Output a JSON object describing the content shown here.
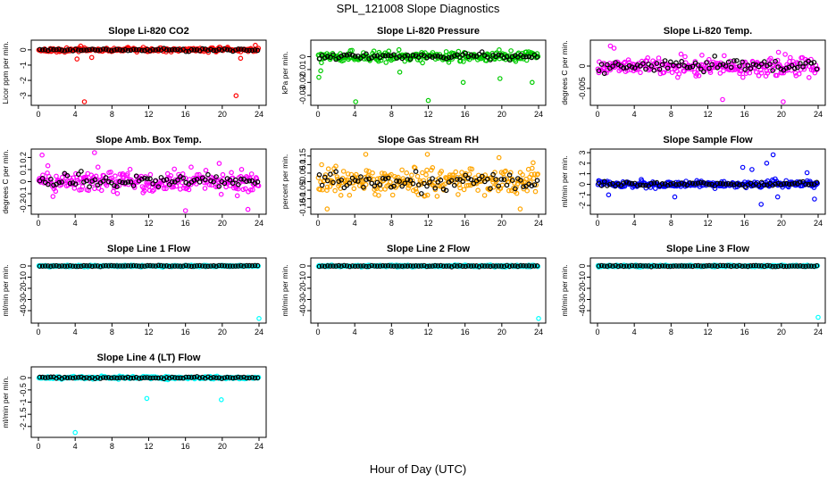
{
  "figure": {
    "title": "SPL_121008  Slope Diagnostics",
    "xlabel": "Hour of Day (UTC)",
    "overlay_color": "#000000"
  },
  "chart_data": [
    {
      "type": "scatter",
      "title": "Slope Li-820 CO2",
      "ylabel": "Licor ppm per min.",
      "xlim": [
        0,
        24
      ],
      "ylim": [
        -3.4,
        0.4
      ],
      "xticks": [
        0,
        4,
        8,
        12,
        16,
        20,
        24
      ],
      "yticks": [
        0,
        -1,
        -2,
        -3
      ],
      "color": "#ff0000",
      "series_spread": 0.14,
      "outliers": [
        [
          4.2,
          -0.6
        ],
        [
          4.6,
          0.25
        ],
        [
          5.0,
          -3.4
        ],
        [
          5.8,
          -0.5
        ],
        [
          21.5,
          -3.0
        ],
        [
          22.0,
          -0.55
        ],
        [
          23.6,
          0.3
        ]
      ]
    },
    {
      "type": "scatter",
      "title": "Slope Li-820 Pressure",
      "ylabel": "kPa per min.",
      "xlim": [
        0,
        24
      ],
      "ylim": [
        -0.035,
        0.01
      ],
      "xticks": [
        0,
        4,
        8,
        12,
        16,
        20,
        24
      ],
      "yticks": [
        0.0,
        -0.01,
        -0.02,
        -0.03
      ],
      "color": "#00cc00",
      "series_spread": 0.004,
      "outliers": [
        [
          0.1,
          -0.016
        ],
        [
          0.3,
          -0.011
        ],
        [
          4.1,
          -0.035
        ],
        [
          8.9,
          -0.012
        ],
        [
          12.0,
          -0.034
        ],
        [
          15.8,
          -0.02
        ],
        [
          19.8,
          -0.017
        ],
        [
          23.3,
          -0.02
        ]
      ]
    },
    {
      "type": "scatter",
      "title": "Slope Li-820 Temp.",
      "ylabel": "degrees C per min.",
      "xlim": [
        0,
        24
      ],
      "ylim": [
        -0.008,
        0.005
      ],
      "xticks": [
        0,
        4,
        8,
        12,
        16,
        20,
        24
      ],
      "yticks": [
        0.0,
        -0.005
      ],
      "color": "#ff00ff",
      "series_spread": 0.0022,
      "outliers": [
        [
          1.4,
          0.0045
        ],
        [
          1.8,
          0.004
        ],
        [
          13.6,
          -0.0075
        ],
        [
          20.2,
          -0.008
        ]
      ]
    },
    {
      "type": "scatter",
      "title": "Slope Amb. Box Temp.",
      "ylabel": "degrees C per min.",
      "xlim": [
        0,
        24
      ],
      "ylim": [
        -0.24,
        0.24
      ],
      "xticks": [
        0,
        4,
        8,
        12,
        16,
        20,
        24
      ],
      "yticks": [
        0.2,
        0.1,
        0.0,
        -0.1,
        -0.2
      ],
      "color": "#ff00ff",
      "series_spread": 0.1,
      "outliers": [
        [
          0.4,
          0.22
        ],
        [
          6.1,
          0.24
        ],
        [
          16.0,
          -0.24
        ],
        [
          22.8,
          -0.23
        ]
      ]
    },
    {
      "type": "scatter",
      "title": "Slope Gas Stream RH",
      "ylabel": "percent per min.",
      "xlim": [
        0,
        24
      ],
      "ylim": [
        -0.17,
        0.17
      ],
      "xticks": [
        0,
        4,
        8,
        12,
        16,
        20,
        24
      ],
      "yticks": [
        0.15,
        0.1,
        0.05,
        0.0,
        -0.05,
        -0.1,
        -0.15
      ],
      "color": "#ffa500",
      "series_spread": 0.08,
      "outliers": [
        [
          1.0,
          -0.16
        ],
        [
          5.2,
          0.16
        ],
        [
          11.9,
          0.16
        ],
        [
          22.0,
          -0.16
        ]
      ]
    },
    {
      "type": "scatter",
      "title": "Slope Sample Flow",
      "ylabel": "ml/min per min.",
      "xlim": [
        0,
        24
      ],
      "ylim": [
        -2.5,
        3.0
      ],
      "xticks": [
        0,
        4,
        8,
        12,
        16,
        20,
        24
      ],
      "yticks": [
        3,
        2,
        1,
        0,
        -1,
        -2
      ],
      "color": "#0000ff",
      "series_spread": 0.35,
      "outliers": [
        [
          15.8,
          1.6
        ],
        [
          16.8,
          1.4
        ],
        [
          17.8,
          -1.9
        ],
        [
          18.4,
          2.0
        ],
        [
          19.1,
          2.8
        ],
        [
          19.6,
          -1.2
        ],
        [
          22.8,
          1.1
        ],
        [
          23.6,
          -1.4
        ],
        [
          8.4,
          -1.2
        ],
        [
          1.2,
          -1.0
        ]
      ]
    },
    {
      "type": "scatter",
      "title": "Slope Line 1 Flow",
      "ylabel": "ml/min per min.",
      "xlim": [
        0,
        24
      ],
      "ylim": [
        -48,
        4
      ],
      "xticks": [
        0,
        4,
        8,
        12,
        16,
        20,
        24
      ],
      "yticks": [
        0,
        -10,
        -20,
        -30,
        -40
      ],
      "color": "#00ffff",
      "series_spread": 0.8,
      "outliers": [
        [
          24.0,
          -47
        ]
      ]
    },
    {
      "type": "scatter",
      "title": "Slope Line 2 Flow",
      "ylabel": "ml/min per min.",
      "xlim": [
        0,
        24
      ],
      "ylim": [
        -48,
        4
      ],
      "xticks": [
        0,
        4,
        8,
        12,
        16,
        20,
        24
      ],
      "yticks": [
        0,
        -10,
        -20,
        -30,
        -40
      ],
      "color": "#00ffff",
      "series_spread": 0.8,
      "outliers": [
        [
          24.0,
          -47
        ]
      ]
    },
    {
      "type": "scatter",
      "title": "Slope Line 3 Flow",
      "ylabel": "ml/min per min.",
      "xlim": [
        0,
        24
      ],
      "ylim": [
        -48,
        4
      ],
      "xticks": [
        0,
        4,
        8,
        12,
        16,
        20,
        24
      ],
      "yticks": [
        0,
        -10,
        -20,
        -30,
        -40
      ],
      "color": "#00ffff",
      "series_spread": 0.8,
      "outliers": [
        [
          24.0,
          -46
        ]
      ]
    },
    {
      "type": "scatter",
      "title": "Slope Line 4 (LT) Flow",
      "ylabel": "ml/min per min.",
      "xlim": [
        0,
        24
      ],
      "ylim": [
        -2.3,
        0.3
      ],
      "xticks": [
        0,
        4,
        8,
        12,
        16,
        20,
        24
      ],
      "yticks": [
        0.0,
        -0.5,
        -1.0,
        -1.5,
        -2.0
      ],
      "color": "#00ffff",
      "series_spread": 0.06,
      "outliers": [
        [
          4.0,
          -2.25
        ],
        [
          11.8,
          -0.85
        ],
        [
          19.9,
          -0.9
        ]
      ]
    }
  ]
}
